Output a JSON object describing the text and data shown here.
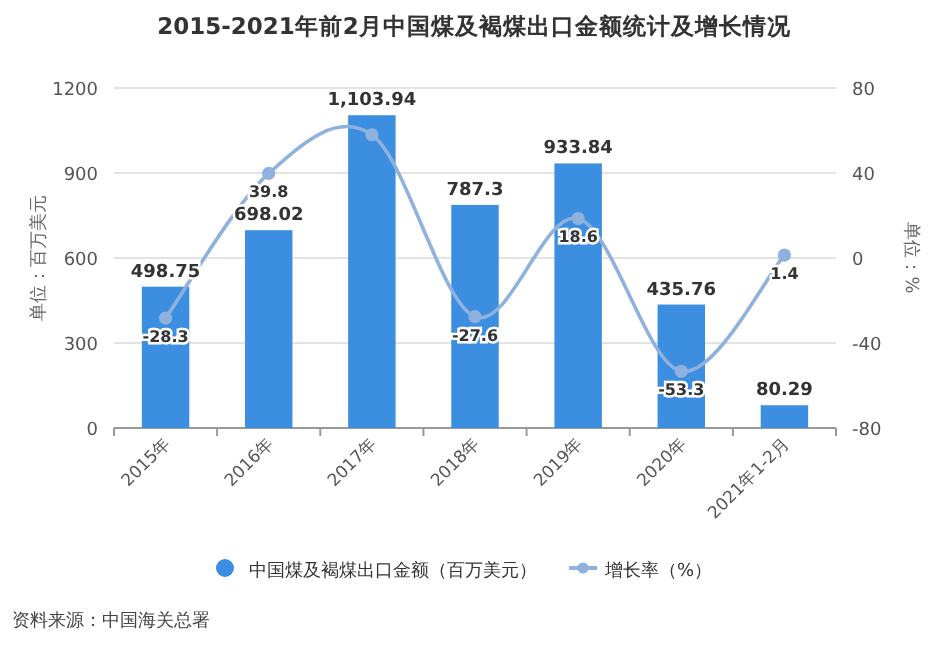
{
  "chart_data": {
    "type": "bar",
    "title": "2015-2021年前2月中国煤及褐煤出口金额统计及增长情况",
    "categories": [
      "2015年",
      "2016年",
      "2017年",
      "2018年",
      "2019年",
      "2020年",
      "2021年1-2月"
    ],
    "series": [
      {
        "name": "中国煤及褐煤出口金额（百万美元）",
        "color": "#3c8ee0",
        "values": [
          498.75,
          698.02,
          1103.94,
          787.3,
          933.84,
          435.76,
          80.29
        ],
        "value_labels": [
          "498.75",
          "698.02",
          "1,103.94",
          "787.3",
          "933.84",
          "435.76",
          "80.29"
        ]
      },
      {
        "name": "增长率（%）",
        "type": "line",
        "axis": "y2",
        "color": "#8fb1de",
        "marker": "circle",
        "values": [
          -28.3,
          39.8,
          58,
          -27.6,
          18.6,
          -53.3,
          1.4
        ],
        "value_labels": [
          "-28.3",
          "39.8",
          null,
          "-27.6",
          "18.6",
          "-53.3",
          "1.4"
        ]
      }
    ],
    "ylabel": "单位：百万美元",
    "y2label": "单位：%",
    "ylim": [
      0,
      1200
    ],
    "yticks": [
      0,
      300,
      600,
      900,
      1200
    ],
    "y2lim": [
      -80,
      80
    ],
    "y2ticks": [
      -80,
      -40,
      0,
      40,
      80
    ],
    "grid": "y",
    "legend": "bottom",
    "annotations": [
      "资料来源：中国海关总署"
    ]
  }
}
